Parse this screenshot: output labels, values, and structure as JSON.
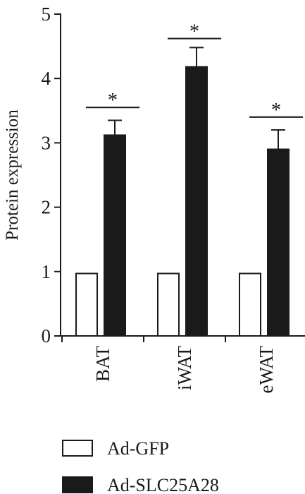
{
  "chart_data": {
    "type": "bar",
    "title": "",
    "xlabel": "",
    "ylabel": "Protein expression",
    "ylim": [
      0,
      5
    ],
    "yticks": [
      0,
      1,
      2,
      3,
      4,
      5
    ],
    "categories": [
      "BAT",
      "iWAT",
      "eWAT"
    ],
    "series": [
      {
        "name": "Ad-GFP",
        "values": [
          0.97,
          0.97,
          0.97
        ],
        "errors": [
          0,
          0,
          0
        ],
        "fill": "#ffffff"
      },
      {
        "name": "Ad-SLC25A28",
        "values": [
          3.12,
          4.18,
          2.9
        ],
        "errors": [
          0.23,
          0.3,
          0.3
        ],
        "fill": "#1a1a1a"
      }
    ],
    "significance": [
      {
        "category": "BAT",
        "label": "*",
        "level": 3.55
      },
      {
        "category": "iWAT",
        "label": "*",
        "level": 4.62
      },
      {
        "category": "eWAT",
        "label": "*",
        "level": 3.4
      }
    ],
    "legend": {
      "position": "bottom"
    }
  },
  "colors": {
    "ink": "#1a1a1a",
    "background": "#ffffff"
  }
}
